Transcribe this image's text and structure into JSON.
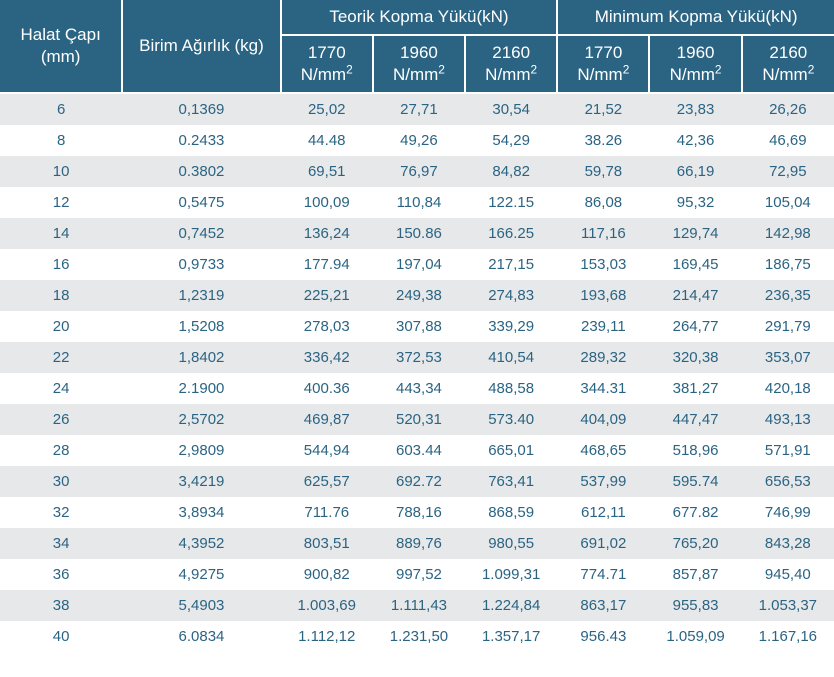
{
  "colors": {
    "header_bg": "#2b6483",
    "header_text": "#ffffff",
    "body_text": "#2b6483",
    "row_even_bg": "#e7e8e9",
    "row_odd_bg": "#ffffff",
    "border": "#ffffff"
  },
  "typography": {
    "header_fontsize_pt": 13,
    "body_fontsize_pt": 11,
    "font_family": "Segoe UI"
  },
  "header": {
    "diam": "Halat Çapı (mm)",
    "weight": "Birim Ağırlık (kg)",
    "group_theoretical": "Teorik Kopma Yükü(kN)",
    "group_minimum": "Minimum Kopma Yükü(kN)",
    "grade_1770": "1770 N/mm²",
    "grade_1960": "1960 N/mm²",
    "grade_2160": "2160 N/mm²"
  },
  "columns": [
    "Halat Çapı (mm)",
    "Birim Ağırlık (kg)",
    "Teorik 1770 N/mm²",
    "Teorik 1960 N/mm²",
    "Teorik 2160 N/mm²",
    "Minimum 1770 N/mm²",
    "Minimum 1960 N/mm²",
    "Minimum 2160 N/mm²"
  ],
  "rows": [
    [
      "6",
      "0,1369",
      "25,02",
      "27,71",
      "30,54",
      "21,52",
      "23,83",
      "26,26"
    ],
    [
      "8",
      "0.2433",
      "44.48",
      "49,26",
      "54,29",
      "38.26",
      "42,36",
      "46,69"
    ],
    [
      "10",
      "0.3802",
      "69,51",
      "76,97",
      "84,82",
      "59,78",
      "66,19",
      "72,95"
    ],
    [
      "12",
      "0,5475",
      "100,09",
      "110,84",
      "122.15",
      "86,08",
      "95,32",
      "105,04"
    ],
    [
      "14",
      "0,7452",
      "136,24",
      "150.86",
      "166.25",
      "117,16",
      "129,74",
      "142,98"
    ],
    [
      "16",
      "0,9733",
      "177.94",
      "197,04",
      "217,15",
      "153,03",
      "169,45",
      "186,75"
    ],
    [
      "18",
      "1,2319",
      "225,21",
      "249,38",
      "274,83",
      "193,68",
      "214,47",
      "236,35"
    ],
    [
      "20",
      "1,5208",
      "278,03",
      "307,88",
      "339,29",
      "239,11",
      "264,77",
      "291,79"
    ],
    [
      "22",
      "1,8402",
      "336,42",
      "372,53",
      "410,54",
      "289,32",
      "320,38",
      "353,07"
    ],
    [
      "24",
      "2.1900",
      "400.36",
      "443,34",
      "488,58",
      "344.31",
      "381,27",
      "420,18"
    ],
    [
      "26",
      "2,5702",
      "469,87",
      "520,31",
      "573.40",
      "404,09",
      "447,47",
      "493,13"
    ],
    [
      "28",
      "2,9809",
      "544,94",
      "603.44",
      "665,01",
      "468,65",
      "518,96",
      "571,91"
    ],
    [
      "30",
      "3,4219",
      "625,57",
      "692.72",
      "763,41",
      "537,99",
      "595.74",
      "656,53"
    ],
    [
      "32",
      "3,8934",
      "711.76",
      "788,16",
      "868,59",
      "612,11",
      "677.82",
      "746,99"
    ],
    [
      "34",
      "4,3952",
      "803,51",
      "889,76",
      "980,55",
      "691,02",
      "765,20",
      "843,28"
    ],
    [
      "36",
      "4,9275",
      "900,82",
      "997,52",
      "1.099,31",
      "774.71",
      "857,87",
      "945,40"
    ],
    [
      "38",
      "5,4903",
      "1.003,69",
      "1.111,43",
      "1.224,84",
      "863,17",
      "955,83",
      "1.053,37"
    ],
    [
      "40",
      "6.0834",
      "1.112,12",
      "1.231,50",
      "1.357,17",
      "956.43",
      "1.059,09",
      "1.167,16"
    ]
  ]
}
